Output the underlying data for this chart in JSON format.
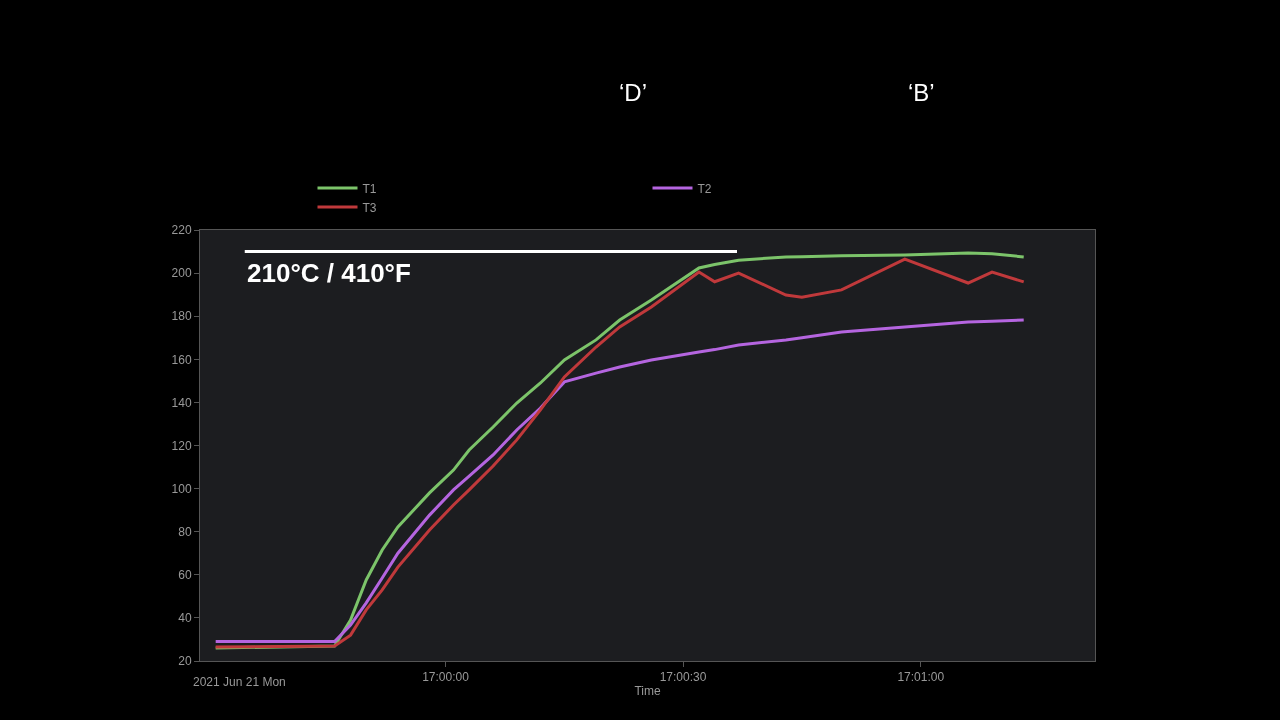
{
  "chart_data": {
    "type": "line",
    "xlabel": "Time",
    "legend": "top",
    "grid": false,
    "marker": "none",
    "line_style": "solid",
    "x": [
      16.99194,
      16.99611,
      16.99667,
      16.99722,
      16.99778,
      16.99833,
      16.99944,
      17.00028,
      17.00083,
      17.00167,
      17.0025,
      17.00333,
      17.00417,
      17.00528,
      17.00611,
      17.00722,
      17.00889,
      17.00944,
      17.01028,
      17.01194,
      17.0125,
      17.01389,
      17.01611,
      17.01833,
      17.01917,
      17.02028
    ],
    "series": [
      {
        "name": "T1",
        "color": "#7cc46a",
        "values": [
          26,
          27,
          39,
          57.6,
          71.5,
          82.2,
          98,
          108.6,
          117.9,
          128.6,
          139.7,
          149,
          159.7,
          169,
          178.2,
          187.5,
          202.4,
          204,
          206,
          207.5,
          207.6,
          208,
          208.4,
          209.3,
          209,
          207.5
        ]
      },
      {
        "name": "T2",
        "color": "#b565e0",
        "values": [
          29,
          29,
          36.7,
          47,
          58.5,
          70,
          87.7,
          99.4,
          105.8,
          115.6,
          127.2,
          137.4,
          149.5,
          153.6,
          156.4,
          159.7,
          163.4,
          164.5,
          166.6,
          169,
          170,
          172.7,
          175,
          177.3,
          177.7,
          178.2
        ]
      },
      {
        "name": "T3",
        "color": "#c0393b",
        "values": [
          26.5,
          27,
          32,
          43.7,
          53,
          63.6,
          80.8,
          92.4,
          99.4,
          110.5,
          122.6,
          136.5,
          151.8,
          165.7,
          175,
          184.3,
          200.5,
          196,
          200,
          189.8,
          188.8,
          192.2,
          206.5,
          195.4,
          200.5,
          195.9
        ]
      }
    ],
    "xlim": [
      16.99139,
      17.02278
    ],
    "xticks": [
      {
        "value": 17.0,
        "label": "17:00:00"
      },
      {
        "value": 17.00833,
        "label": "17:00:30"
      },
      {
        "value": 17.01667,
        "label": "17:01:00"
      }
    ],
    "ylim": [
      20,
      220
    ],
    "yticks": [
      20,
      40,
      60,
      80,
      100,
      120,
      140,
      160,
      180,
      200,
      220
    ],
    "ref_lines": [
      {
        "axis": "y",
        "value": 210,
        "label": "210°C / 410°F",
        "color": "#ffffff"
      }
    ],
    "annotations": [
      "‘D’",
      "‘B’",
      "2021 Jun 21 Mon"
    ]
  }
}
